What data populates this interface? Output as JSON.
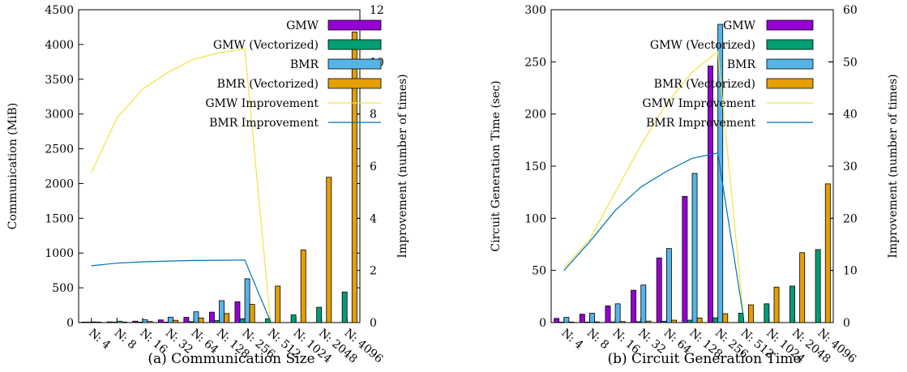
{
  "chart_data": [
    {
      "type": "bar",
      "caption": "(a) Communication Size",
      "ylabel": "Communication (MiB)",
      "y2label": "Improvement (number of times)",
      "ylim": [
        0,
        4500
      ],
      "y2lim": [
        0,
        12
      ],
      "yticks": [
        0,
        500,
        1000,
        1500,
        2000,
        2500,
        3000,
        3500,
        4000,
        4500
      ],
      "y2ticks": [
        0,
        2,
        4,
        6,
        8,
        10,
        12
      ],
      "categories": [
        "N: 4",
        "N: 8",
        "N: 16",
        "N: 32",
        "N: 64",
        "N: 128",
        "N: 256",
        "N: 512",
        "N: 1024",
        "N: 2048",
        "N: 4096"
      ],
      "series": [
        {
          "name": "GMW",
          "color": "#9400d3",
          "values": [
            5,
            10,
            20,
            38,
            75,
            150,
            300,
            null,
            null,
            null,
            null
          ]
        },
        {
          "name": "GMW (Vectorized)",
          "color": "#009e73",
          "values": [
            1,
            2,
            4,
            7,
            14,
            28,
            55,
            55,
            110,
            220,
            440
          ]
        },
        {
          "name": "BMR",
          "color": "#56b4e9",
          "values": [
            10,
            20,
            40,
            78,
            155,
            315,
            630,
            null,
            null,
            null,
            null
          ]
        },
        {
          "name": "BMR (Vectorized)",
          "color": "#e69f00",
          "values": [
            4,
            8,
            16,
            33,
            66,
            130,
            262,
            525,
            1045,
            2090,
            4180
          ]
        }
      ],
      "lines": [
        {
          "name": "GMW Improvement",
          "color": "#f0e442",
          "axis": "right",
          "values": [
            5.75,
            7.85,
            8.95,
            9.6,
            10.1,
            10.35,
            10.5,
            0.05
          ]
        },
        {
          "name": "BMR Improvement",
          "color": "#0072b2",
          "axis": "right",
          "values": [
            2.18,
            2.28,
            2.33,
            2.36,
            2.38,
            2.39,
            2.4,
            0.05
          ]
        }
      ]
    },
    {
      "type": "bar",
      "caption": "(b) Circuit Generation Time",
      "ylabel": "Circuit Generation Time (sec)",
      "y2label": "Improvement (number of times)",
      "ylim": [
        0,
        300
      ],
      "y2lim": [
        0,
        60
      ],
      "yticks": [
        0,
        50,
        100,
        150,
        200,
        250,
        300
      ],
      "y2ticks": [
        0,
        10,
        20,
        30,
        40,
        50,
        60
      ],
      "categories": [
        "N: 4",
        "N: 8",
        "N: 16",
        "N: 32",
        "N: 64",
        "N: 128",
        "N: 256",
        "N: 512",
        "N: 1024",
        "N: 2048",
        "N: 4096"
      ],
      "series": [
        {
          "name": "GMW",
          "color": "#9400d3",
          "values": [
            4,
            8,
            16,
            31,
            62,
            121,
            246,
            null,
            null,
            null,
            null
          ]
        },
        {
          "name": "GMW (Vectorized)",
          "color": "#009e73",
          "values": [
            0.3,
            0.4,
            0.6,
            0.9,
            1.3,
            2.3,
            4.5,
            9,
            18,
            35,
            70
          ]
        },
        {
          "name": "BMR",
          "color": "#56b4e9",
          "values": [
            5,
            9,
            18,
            36,
            71,
            143,
            286,
            null,
            null,
            null,
            null
          ]
        },
        {
          "name": "BMR (Vectorized)",
          "color": "#e69f00",
          "values": [
            0.5,
            0.6,
            1,
            1.4,
            2.3,
            4.3,
            8.5,
            17,
            34,
            67,
            133
          ]
        }
      ],
      "lines": [
        {
          "name": "GMW Improvement",
          "color": "#f0e442",
          "axis": "right",
          "values": [
            10.5,
            16,
            25,
            34,
            42,
            48,
            52,
            1
          ]
        },
        {
          "name": "BMR Improvement",
          "color": "#0072b2",
          "axis": "right",
          "values": [
            10,
            15.5,
            21.5,
            26,
            29,
            31.5,
            32.5,
            1
          ]
        }
      ]
    }
  ]
}
